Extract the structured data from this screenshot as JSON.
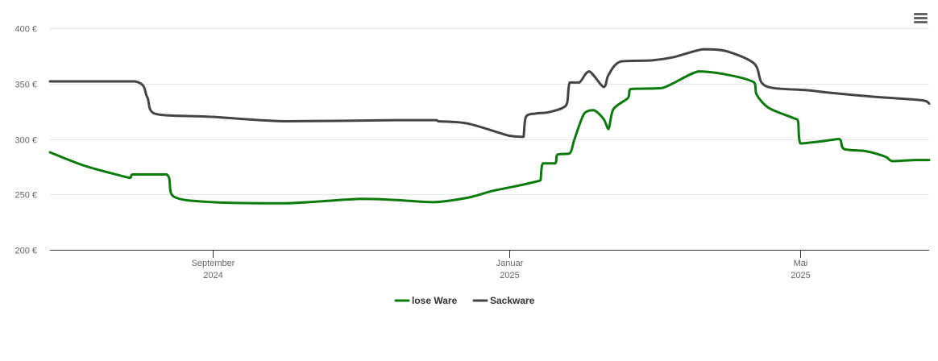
{
  "chart_data": {
    "type": "line",
    "title": "",
    "xlabel": "",
    "ylabel": "",
    "ylim": [
      200,
      400
    ],
    "y_ticks": [
      "200 €",
      "250 €",
      "300 €",
      "350 €",
      "400 €"
    ],
    "y_tick_values": [
      200,
      250,
      300,
      350,
      400
    ],
    "x_range": [
      "2024-06-26",
      "2025-06-23"
    ],
    "x_ticks": [
      {
        "date": "2024-09-01",
        "label": "September",
        "year": "2024"
      },
      {
        "date": "2025-01-01",
        "label": "Januar",
        "year": "2025"
      },
      {
        "date": "2025-05-01",
        "label": "Mai",
        "year": "2025"
      }
    ],
    "grid": true,
    "legend_position": "bottom",
    "series": [
      {
        "name": "lose Ware",
        "color": "#0a7a0a",
        "points": [
          [
            "2024-06-26",
            288
          ],
          [
            "2024-07-10",
            276
          ],
          [
            "2024-07-25",
            267
          ],
          [
            "2024-07-29",
            265
          ],
          [
            "2024-07-30",
            268
          ],
          [
            "2024-08-13",
            268
          ],
          [
            "2024-08-16",
            248
          ],
          [
            "2024-09-01",
            243
          ],
          [
            "2024-10-01",
            242
          ],
          [
            "2024-11-01",
            246
          ],
          [
            "2024-11-15",
            245
          ],
          [
            "2024-12-01",
            243
          ],
          [
            "2024-12-15",
            247
          ],
          [
            "2024-12-25",
            253
          ],
          [
            "2025-01-05",
            258
          ],
          [
            "2025-01-13",
            262
          ],
          [
            "2025-01-14",
            263
          ],
          [
            "2025-01-15",
            278
          ],
          [
            "2025-01-20",
            278
          ],
          [
            "2025-01-21",
            286
          ],
          [
            "2025-01-26",
            287
          ],
          [
            "2025-01-28",
            300
          ],
          [
            "2025-02-01",
            323
          ],
          [
            "2025-02-05",
            326
          ],
          [
            "2025-02-09",
            318
          ],
          [
            "2025-02-11",
            309
          ],
          [
            "2025-02-13",
            327
          ],
          [
            "2025-02-19",
            337
          ],
          [
            "2025-02-20",
            345
          ],
          [
            "2025-03-05",
            346
          ],
          [
            "2025-03-20",
            361
          ],
          [
            "2025-04-01",
            358
          ],
          [
            "2025-04-12",
            351
          ],
          [
            "2025-04-13",
            340
          ],
          [
            "2025-04-18",
            328
          ],
          [
            "2025-04-28",
            319
          ],
          [
            "2025-04-30",
            316
          ],
          [
            "2025-05-01",
            296
          ],
          [
            "2025-05-10",
            298
          ],
          [
            "2025-05-17",
            300
          ],
          [
            "2025-05-19",
            291
          ],
          [
            "2025-05-28",
            289
          ],
          [
            "2025-06-05",
            284
          ],
          [
            "2025-06-08",
            280
          ],
          [
            "2025-06-17",
            281
          ],
          [
            "2025-06-23",
            281
          ]
        ]
      },
      {
        "name": "Sackware",
        "color": "#434348",
        "points": [
          [
            "2024-06-26",
            352
          ],
          [
            "2024-07-31",
            352
          ],
          [
            "2024-08-05",
            338
          ],
          [
            "2024-08-08",
            323
          ],
          [
            "2024-09-01",
            320
          ],
          [
            "2024-10-01",
            316
          ],
          [
            "2024-11-15",
            317
          ],
          [
            "2024-12-02",
            317
          ],
          [
            "2024-12-03",
            316
          ],
          [
            "2024-12-15",
            314
          ],
          [
            "2025-01-01",
            303
          ],
          [
            "2025-01-06",
            302
          ],
          [
            "2025-01-07",
            302
          ],
          [
            "2025-01-08",
            320
          ],
          [
            "2025-01-12",
            323
          ],
          [
            "2025-01-17",
            324
          ],
          [
            "2025-01-23",
            328
          ],
          [
            "2025-01-25",
            333
          ],
          [
            "2025-01-26",
            351
          ],
          [
            "2025-01-30",
            351
          ],
          [
            "2025-02-03",
            361
          ],
          [
            "2025-02-09",
            347
          ],
          [
            "2025-02-11",
            358
          ],
          [
            "2025-02-16",
            370
          ],
          [
            "2025-03-01",
            371
          ],
          [
            "2025-03-10",
            374
          ],
          [
            "2025-03-22",
            381
          ],
          [
            "2025-04-01",
            379
          ],
          [
            "2025-04-12",
            368
          ],
          [
            "2025-04-15",
            351
          ],
          [
            "2025-04-20",
            346
          ],
          [
            "2025-05-04",
            344
          ],
          [
            "2025-05-12",
            342
          ],
          [
            "2025-06-01",
            338
          ],
          [
            "2025-06-20",
            335
          ],
          [
            "2025-06-23",
            332
          ]
        ]
      }
    ]
  },
  "menu": {
    "icon": "hamburger-menu-icon"
  }
}
